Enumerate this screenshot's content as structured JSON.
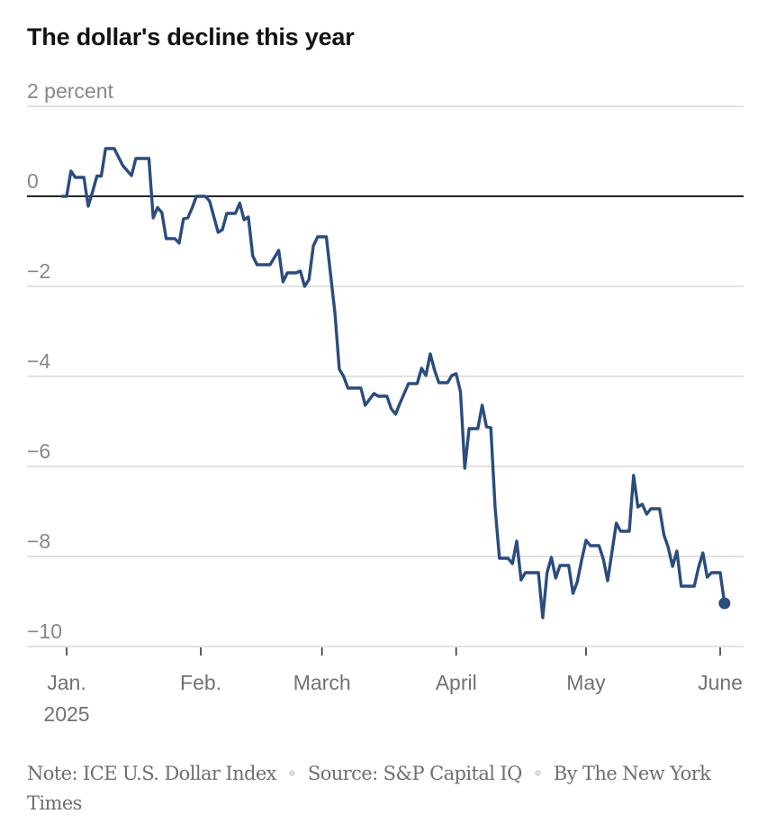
{
  "chart_data": {
    "type": "line",
    "title": "The dollar's decline this year",
    "ylabel_unit": "percent",
    "ylim": [
      -10,
      2
    ],
    "yticks": [
      2,
      0,
      -2,
      -4,
      -6,
      -8,
      -10
    ],
    "ytick_labels": [
      "2 percent",
      "0",
      "−2",
      "−4",
      "−6",
      "−8",
      "−10"
    ],
    "xticks": [
      {
        "day": 0,
        "label": "Jan.",
        "sublabel": "2025"
      },
      {
        "day": 31,
        "label": "Feb."
      },
      {
        "day": 59,
        "label": "March"
      },
      {
        "day": 90,
        "label": "April"
      },
      {
        "day": 120,
        "label": "May"
      },
      {
        "day": 151,
        "label": "June"
      }
    ],
    "xlim": [
      -6,
      157
    ],
    "x_unit": "day of year 2025 (Jan. 1 = 0)",
    "grid": true,
    "zero_line": true,
    "line_color": "#2b4c7e",
    "series": [
      {
        "name": "ICE U.S. Dollar Index change",
        "points": [
          [
            -1,
            0.0
          ],
          [
            0,
            0.0
          ],
          [
            1,
            0.56
          ],
          [
            2,
            0.42
          ],
          [
            4,
            0.42
          ],
          [
            5,
            -0.22
          ],
          [
            6,
            0.1
          ],
          [
            7,
            0.45
          ],
          [
            8,
            0.45
          ],
          [
            9,
            1.06
          ],
          [
            11,
            1.06
          ],
          [
            13,
            0.68
          ],
          [
            15,
            0.46
          ],
          [
            16,
            0.84
          ],
          [
            19,
            0.84
          ],
          [
            20,
            -0.48
          ],
          [
            21,
            -0.25
          ],
          [
            22,
            -0.36
          ],
          [
            23,
            -0.94
          ],
          [
            25,
            -0.94
          ],
          [
            26,
            -1.04
          ],
          [
            27,
            -0.5
          ],
          [
            28,
            -0.48
          ],
          [
            29,
            -0.26
          ],
          [
            30,
            0.0
          ],
          [
            32,
            0.0
          ],
          [
            33,
            -0.1
          ],
          [
            35,
            -0.8
          ],
          [
            36,
            -0.74
          ],
          [
            37,
            -0.38
          ],
          [
            39,
            -0.38
          ],
          [
            40,
            -0.15
          ],
          [
            41,
            -0.52
          ],
          [
            42,
            -0.46
          ],
          [
            43,
            -1.32
          ],
          [
            44,
            -1.52
          ],
          [
            47,
            -1.52
          ],
          [
            49,
            -1.2
          ],
          [
            50,
            -1.9
          ],
          [
            51,
            -1.7
          ],
          [
            53,
            -1.7
          ],
          [
            54,
            -1.66
          ],
          [
            55,
            -2.0
          ],
          [
            56,
            -1.85
          ],
          [
            57,
            -1.1
          ],
          [
            58,
            -0.9
          ],
          [
            60,
            -0.9
          ],
          [
            62,
            -2.6
          ],
          [
            63,
            -3.84
          ],
          [
            64,
            -4.0
          ],
          [
            65,
            -4.26
          ],
          [
            68,
            -4.26
          ],
          [
            69,
            -4.64
          ],
          [
            71,
            -4.38
          ],
          [
            72,
            -4.44
          ],
          [
            74,
            -4.44
          ],
          [
            75,
            -4.72
          ],
          [
            76,
            -4.84
          ],
          [
            77,
            -4.6
          ],
          [
            79,
            -4.16
          ],
          [
            81,
            -4.16
          ],
          [
            82,
            -3.82
          ],
          [
            83,
            -3.98
          ],
          [
            84,
            -3.5
          ],
          [
            85,
            -3.86
          ],
          [
            86,
            -4.14
          ],
          [
            88,
            -4.14
          ],
          [
            89,
            -3.98
          ],
          [
            90,
            -3.94
          ],
          [
            91,
            -4.34
          ],
          [
            92,
            -6.04
          ],
          [
            93,
            -5.16
          ],
          [
            95,
            -5.16
          ],
          [
            96,
            -4.64
          ],
          [
            97,
            -5.12
          ],
          [
            98,
            -5.14
          ],
          [
            99,
            -6.92
          ],
          [
            100,
            -8.04
          ],
          [
            102,
            -8.04
          ],
          [
            103,
            -8.16
          ],
          [
            104,
            -7.66
          ],
          [
            105,
            -8.52
          ],
          [
            106,
            -8.36
          ],
          [
            109,
            -8.36
          ],
          [
            110,
            -9.36
          ],
          [
            111,
            -8.36
          ],
          [
            112,
            -8.02
          ],
          [
            113,
            -8.48
          ],
          [
            114,
            -8.2
          ],
          [
            116,
            -8.2
          ],
          [
            117,
            -8.82
          ],
          [
            118,
            -8.56
          ],
          [
            119,
            -8.08
          ],
          [
            120,
            -7.64
          ],
          [
            121,
            -7.76
          ],
          [
            123,
            -7.76
          ],
          [
            124,
            -8.06
          ],
          [
            125,
            -8.54
          ],
          [
            127,
            -7.26
          ],
          [
            128,
            -7.44
          ],
          [
            130,
            -7.44
          ],
          [
            131,
            -6.2
          ],
          [
            132,
            -6.9
          ],
          [
            133,
            -6.84
          ],
          [
            134,
            -7.06
          ],
          [
            135,
            -6.94
          ],
          [
            137,
            -6.94
          ],
          [
            138,
            -7.52
          ],
          [
            139,
            -7.8
          ],
          [
            140,
            -8.22
          ],
          [
            141,
            -7.88
          ],
          [
            142,
            -8.66
          ],
          [
            145,
            -8.66
          ],
          [
            146,
            -8.24
          ],
          [
            147,
            -7.92
          ],
          [
            148,
            -8.46
          ],
          [
            149,
            -8.36
          ],
          [
            151,
            -8.36
          ],
          [
            152,
            -9.04
          ]
        ]
      }
    ],
    "endpoint_marker": {
      "day": 152,
      "value": -9.04
    }
  },
  "footer": {
    "note": "Note: ICE U.S. Dollar Index",
    "source": "Source: S&P Capital IQ",
    "byline": "By The New York Times"
  }
}
